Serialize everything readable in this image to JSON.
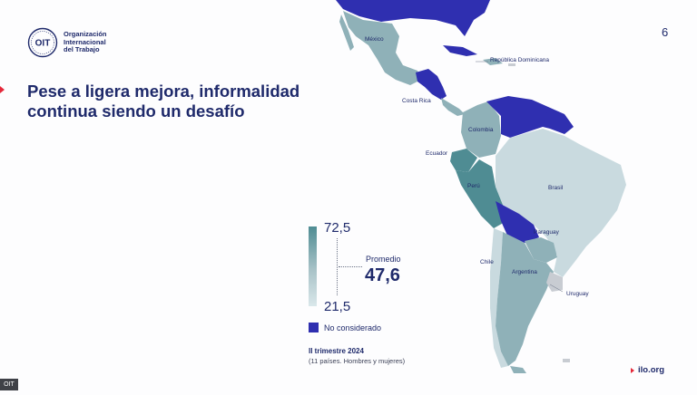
{
  "logo": {
    "icon": "ilo-seal-icon",
    "seal_text": "OIT",
    "line1": "Organización",
    "line2": "Internacional",
    "line3": "del Trabajo"
  },
  "slide_number": "6",
  "title": "Pese a ligera mejora, informalidad continua siendo un desafío",
  "map": {
    "colors": {
      "not_considered": "#2f2fb0",
      "high": "#4f8c93",
      "mid": "#8fb1b8",
      "low": "#c9dadf",
      "grey": "#c8ccd2"
    },
    "labels": {
      "mexico": "México",
      "dominican_republic": "República Dominicana",
      "costa_rica": "Costa Rica",
      "colombia": "Colombia",
      "ecuador": "Ecuador",
      "peru": "Perú",
      "brasil": "Brasil",
      "paraguay": "Paraguay",
      "chile": "Chile",
      "argentina": "Argentina",
      "uruguay": "Uruguay"
    }
  },
  "legend": {
    "max": "72,5",
    "min": "21,5",
    "average_label": "Promedio",
    "average_value": "47,6",
    "not_considered": "No considerado"
  },
  "note": {
    "period": "II trimestre 2024",
    "detail": "(11 países. Hombres y mujeres)"
  },
  "footer": {
    "link": "ilo.org"
  },
  "corner_badge": "OIT"
}
